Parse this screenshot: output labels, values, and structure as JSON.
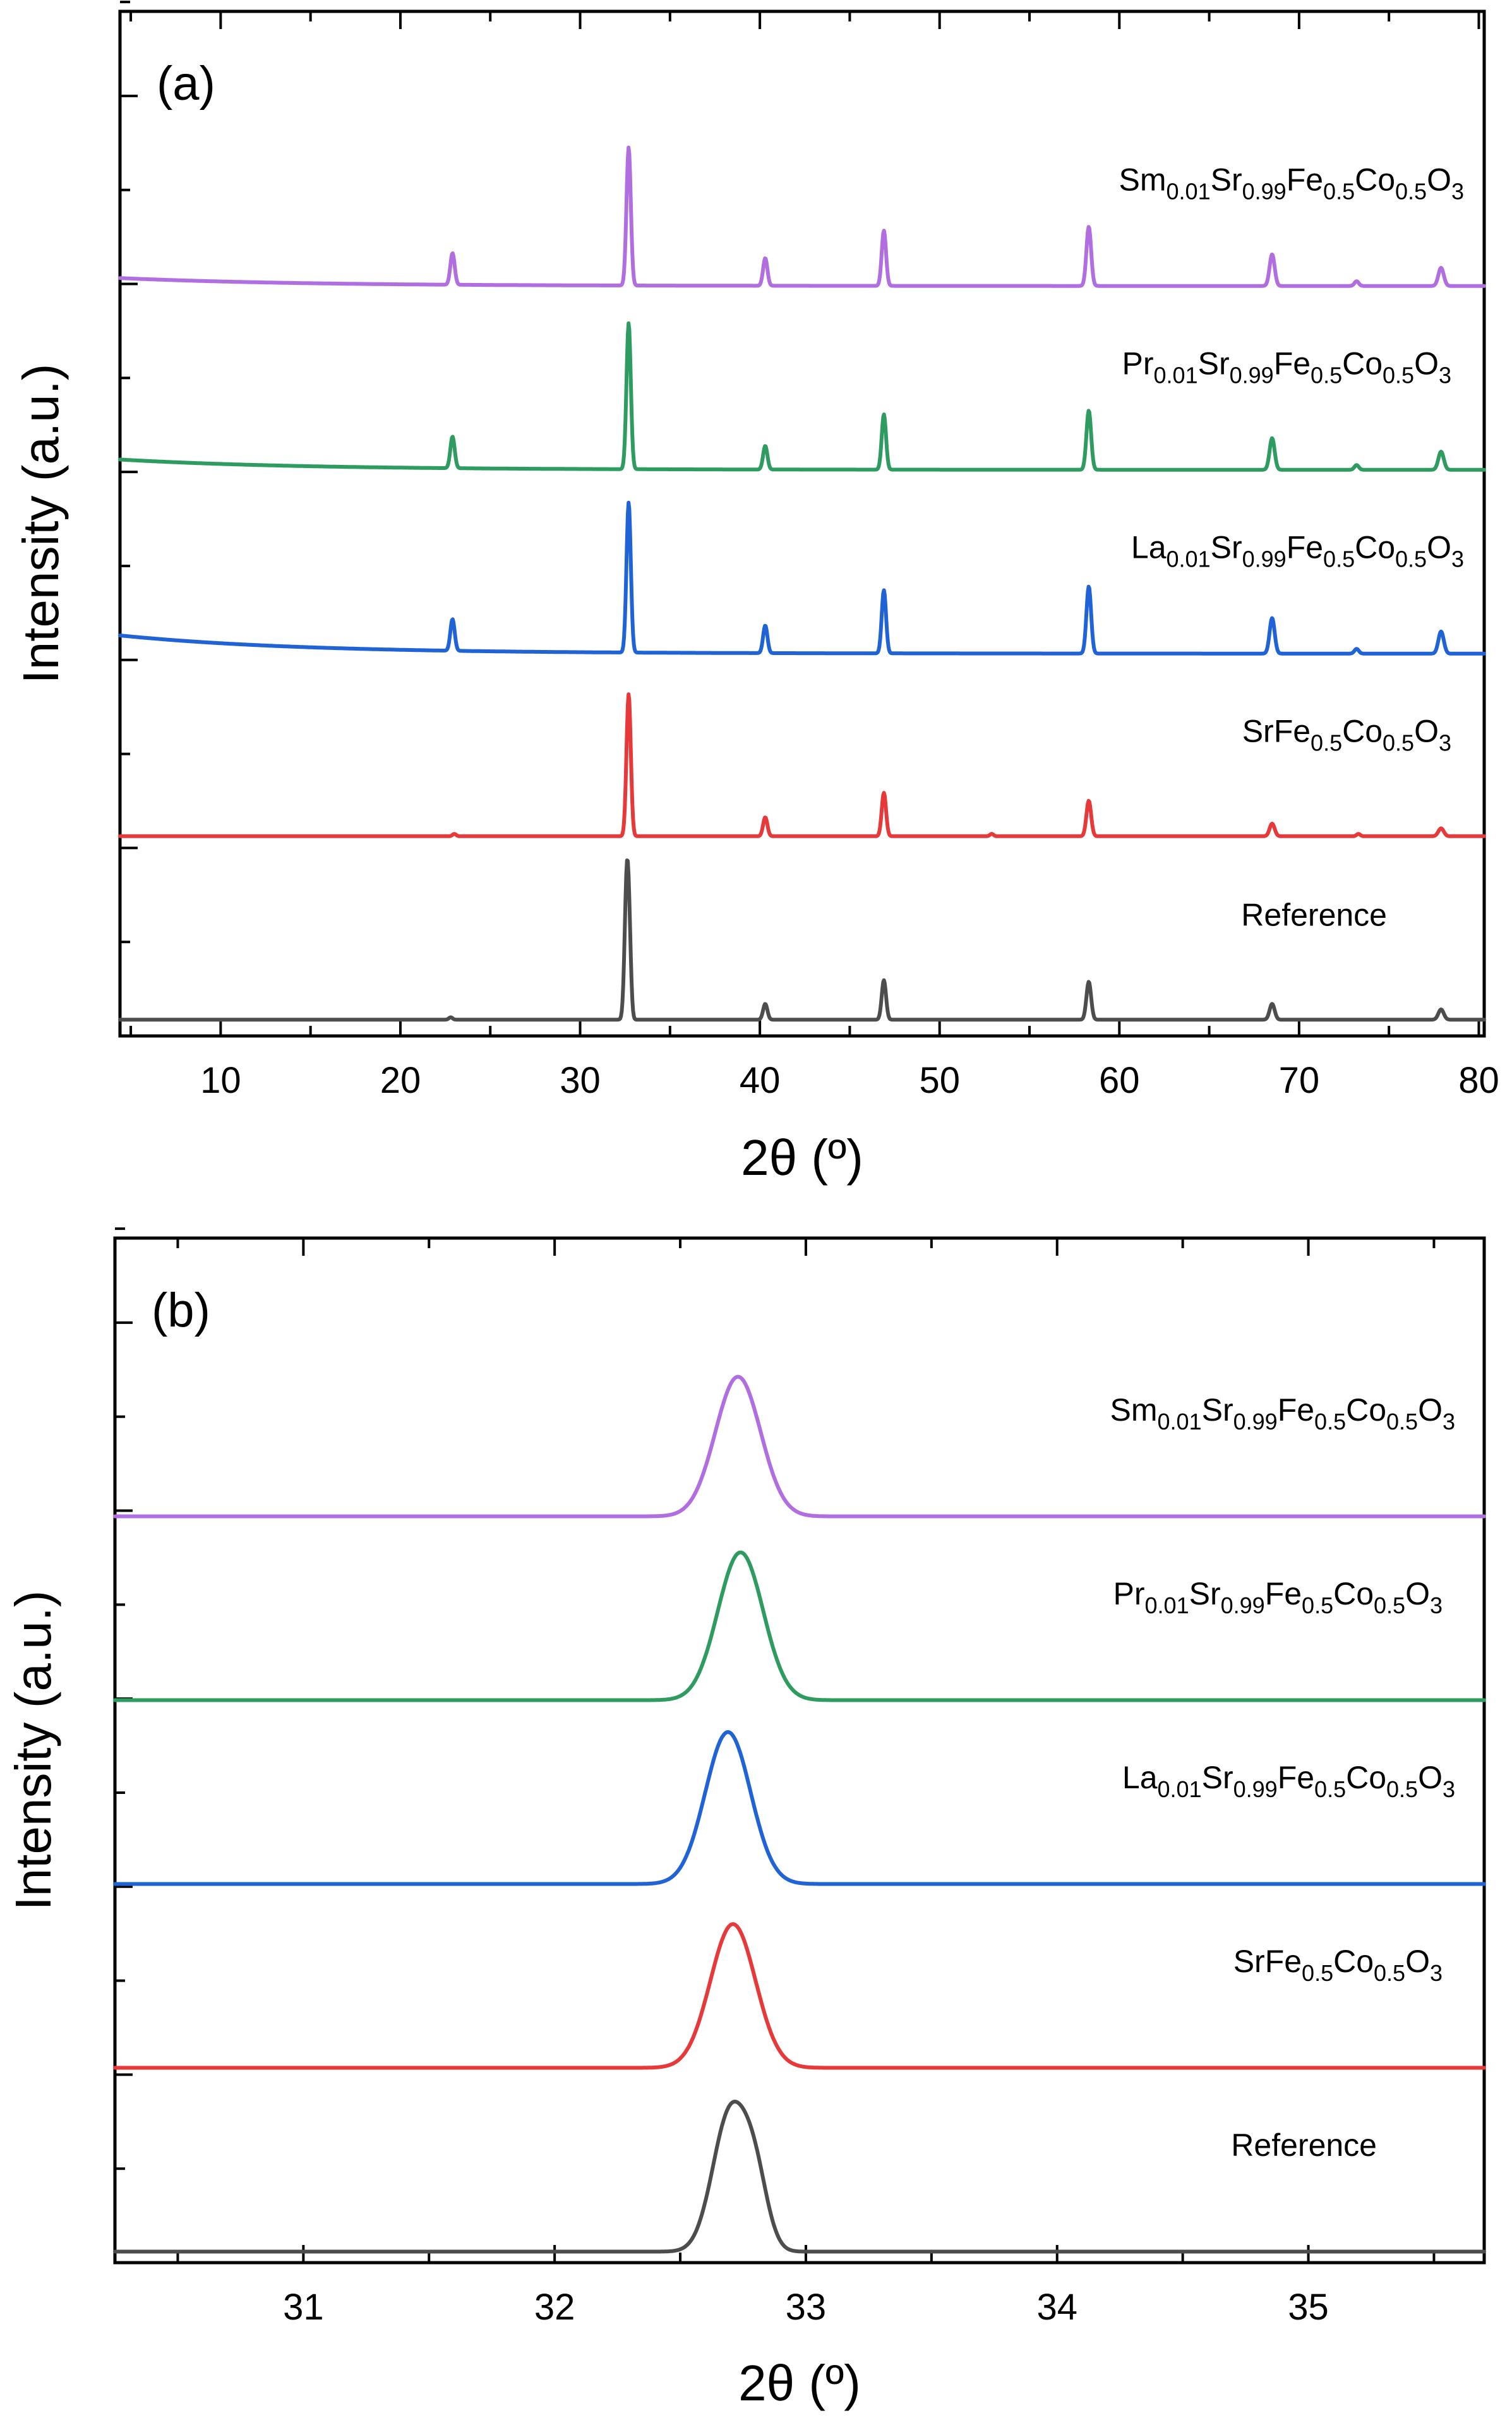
{
  "chart_data": [
    {
      "type": "line",
      "panel_label": "(a)",
      "xlabel": "2θ (º)",
      "ylabel": "Intensity (a.u.)",
      "xlim": [
        4.4,
        80.3
      ],
      "x_ticks": [
        10,
        20,
        30,
        40,
        50,
        60,
        70,
        80
      ],
      "x_tick_labels": [
        "10",
        "20",
        "30",
        "40",
        "50",
        "60",
        "70",
        "80"
      ],
      "y_major_ticks": 5,
      "grid": false,
      "series": [
        {
          "name": "Reference",
          "label": {
            "pre": "Reference"
          },
          "color": "#4d4d4d",
          "baseline": 0.2,
          "start_offset": 0.0,
          "decay": 8,
          "peaks": [
            [
              22.8,
              0.3,
              0.1
            ],
            [
              32.6,
              18.0,
              0.12
            ],
            [
              32.75,
              6.0,
              0.1
            ],
            [
              40.3,
              2.0,
              0.12
            ],
            [
              46.9,
              5.0,
              0.12
            ],
            [
              58.3,
              4.8,
              0.13
            ],
            [
              68.5,
              2.0,
              0.14
            ],
            [
              77.9,
              1.3,
              0.15
            ]
          ]
        },
        {
          "name": "SrFe0.5Co0.5O3",
          "label": {
            "pre": "SrFe",
            "sub1": "0.5",
            "mid": "Co",
            "sub2": "0.5",
            "post": "O",
            "sub3": "3"
          },
          "color": "#e8393a",
          "baseline": 0.15,
          "start_offset": 0.0,
          "decay": 8,
          "peaks": [
            [
              23.0,
              0.3,
              0.1
            ],
            [
              32.7,
              18.0,
              0.12
            ],
            [
              40.3,
              2.4,
              0.12
            ],
            [
              46.9,
              5.5,
              0.12
            ],
            [
              52.9,
              0.3,
              0.1
            ],
            [
              58.3,
              4.5,
              0.13
            ],
            [
              68.5,
              1.6,
              0.14
            ],
            [
              73.3,
              0.3,
              0.1
            ],
            [
              77.9,
              1.0,
              0.15
            ]
          ]
        },
        {
          "name": "La0.01Sr0.99Fe0.5Co0.5O3",
          "label": {
            "pre": "La",
            "sub1": "0.01",
            "mid": "Sr",
            "sub2": "0.99",
            "post": "Fe",
            "sub3": "0.5",
            "post2": "Co",
            "sub4": "0.5",
            "post3": "O",
            "sub5": "3"
          },
          "color": "#1f63d6",
          "baseline": 0.0,
          "start_offset": 2.3,
          "decay": 10,
          "peaks": [
            [
              22.9,
              4.0,
              0.12
            ],
            [
              32.7,
              19.0,
              0.12
            ],
            [
              40.3,
              3.5,
              0.12
            ],
            [
              46.9,
              8.0,
              0.12
            ],
            [
              58.3,
              8.5,
              0.13
            ],
            [
              68.5,
              4.5,
              0.14
            ],
            [
              73.2,
              0.6,
              0.12
            ],
            [
              77.9,
              2.8,
              0.15
            ]
          ]
        },
        {
          "name": "Pr0.01Sr0.99Fe0.5Co0.5O3",
          "label": {
            "pre": "Pr",
            "sub1": "0.01",
            "mid": "Sr",
            "sub2": "0.99",
            "post": "Fe",
            "sub3": "0.5",
            "post2": "Co",
            "sub4": "0.5",
            "post3": "O",
            "sub5": "3"
          },
          "color": "#2e9c61",
          "baseline": 0.0,
          "start_offset": 1.3,
          "decay": 10,
          "peaks": [
            [
              22.9,
              4.0,
              0.12
            ],
            [
              32.7,
              18.5,
              0.12
            ],
            [
              40.3,
              3.0,
              0.12
            ],
            [
              46.9,
              7.0,
              0.12
            ],
            [
              58.3,
              7.5,
              0.13
            ],
            [
              68.5,
              4.0,
              0.14
            ],
            [
              73.2,
              0.6,
              0.12
            ],
            [
              77.9,
              2.3,
              0.15
            ]
          ]
        },
        {
          "name": "Sm0.01Sr0.99Fe0.5Co0.5O3",
          "label": {
            "pre": "Sm",
            "sub1": "0.01",
            "mid": "Sr",
            "sub2": "0.99",
            "post": "Fe",
            "sub3": "0.5",
            "post2": "Co",
            "sub4": "0.5",
            "post3": "O",
            "sub5": "3"
          },
          "color": "#b06ee0",
          "baseline": 0.0,
          "start_offset": 1.0,
          "decay": 10,
          "peaks": [
            [
              22.9,
              4.0,
              0.12
            ],
            [
              32.7,
              17.5,
              0.12
            ],
            [
              40.3,
              3.5,
              0.12
            ],
            [
              46.9,
              7.0,
              0.12
            ],
            [
              58.3,
              7.5,
              0.13
            ],
            [
              68.5,
              4.0,
              0.14
            ],
            [
              73.2,
              0.6,
              0.12
            ],
            [
              77.9,
              2.3,
              0.15
            ]
          ]
        }
      ]
    },
    {
      "type": "line",
      "panel_label": "(b)",
      "xlabel": "2θ (º)",
      "ylabel": "Intensity (a.u.)",
      "xlim": [
        30.25,
        35.7
      ],
      "x_ticks": [
        31,
        32,
        33,
        34,
        35
      ],
      "x_tick_labels": [
        "31",
        "32",
        "33",
        "34",
        "35"
      ],
      "y_major_ticks": 5,
      "grid": false,
      "series": [
        {
          "name": "Reference",
          "label": {
            "pre": "Reference"
          },
          "color": "#4d4d4d",
          "peaks": [
            [
              32.7,
              17.0,
              0.07
            ],
            [
              32.8,
              7.0,
              0.05
            ]
          ]
        },
        {
          "name": "SrFe0.5Co0.5O3",
          "label": {
            "pre": "SrFe",
            "sub1": "0.5",
            "mid": "Co",
            "sub2": "0.5",
            "post": "O",
            "sub3": "3"
          },
          "color": "#e8393a",
          "peaks": [
            [
              32.71,
              17.5,
              0.09
            ]
          ]
        },
        {
          "name": "La0.01Sr0.99Fe0.5Co0.5O3",
          "label": {
            "pre": "La",
            "sub1": "0.01",
            "mid": "Sr",
            "sub2": "0.99",
            "post": "Fe",
            "sub3": "0.5",
            "post2": "Co",
            "sub4": "0.5",
            "post3": "O",
            "sub5": "3"
          },
          "color": "#1f63d6",
          "peaks": [
            [
              32.69,
              18.5,
              0.09
            ]
          ]
        },
        {
          "name": "Pr0.01Sr0.99Fe0.5Co0.5O3",
          "label": {
            "pre": "Pr",
            "sub1": "0.01",
            "mid": "Sr",
            "sub2": "0.99",
            "post": "Fe",
            "sub3": "0.5",
            "post2": "Co",
            "sub4": "0.5",
            "post3": "O",
            "sub5": "3"
          },
          "color": "#2e9c61",
          "peaks": [
            [
              32.74,
              18.0,
              0.09
            ]
          ]
        },
        {
          "name": "Sm0.01Sr0.99Fe0.5Co0.5O3",
          "label": {
            "pre": "Sm",
            "sub1": "0.01",
            "mid": "Sr",
            "sub2": "0.99",
            "post": "Fe",
            "sub3": "0.5",
            "post2": "Co",
            "sub4": "0.5",
            "post3": "O",
            "sub5": "3"
          },
          "color": "#b06ee0",
          "peaks": [
            [
              32.73,
              17.0,
              0.09
            ]
          ]
        }
      ]
    }
  ]
}
